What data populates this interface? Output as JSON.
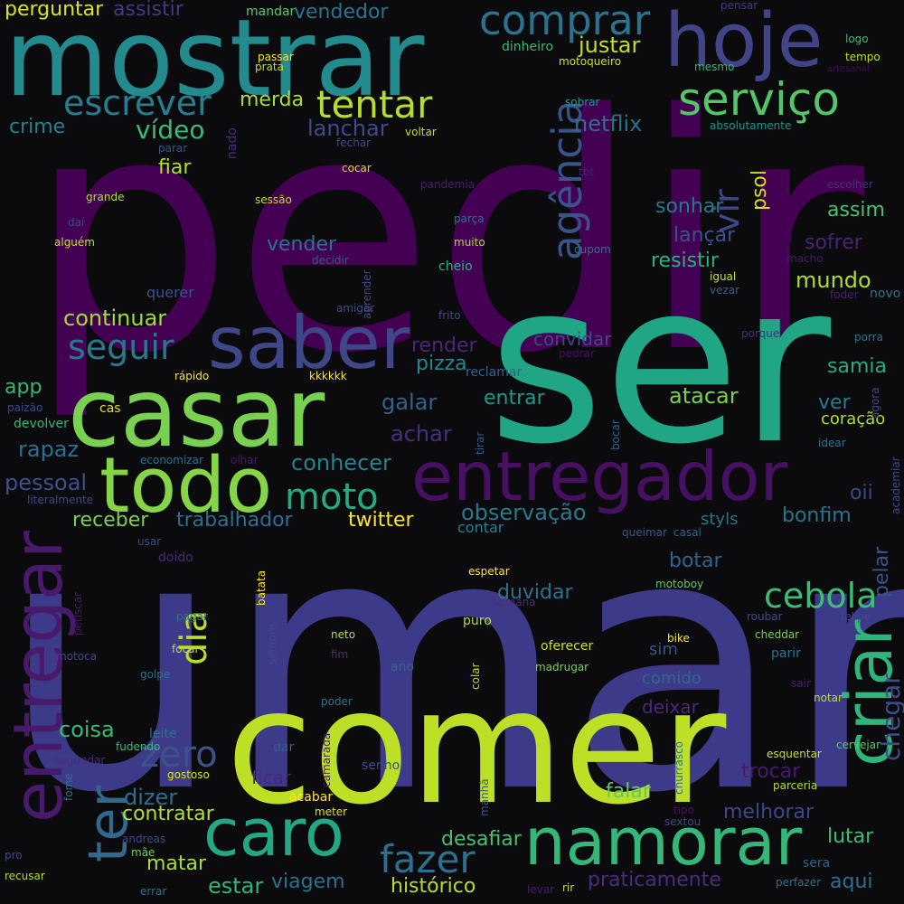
{
  "wordcloud": {
    "words": [
      {
        "text": "pedir",
        "color": "#440154"
      },
      {
        "text": "umar",
        "color": "#3e3a8a"
      },
      {
        "text": "ser",
        "color": "#21a685"
      },
      {
        "text": "comer",
        "color": "#bddf26"
      },
      {
        "text": "mostrar",
        "color": "#238a8d"
      },
      {
        "text": "casar",
        "color": "#7ad151"
      },
      {
        "text": "saber",
        "color": "#3f4788"
      },
      {
        "text": "entregador",
        "color": "#471063"
      },
      {
        "text": "todo",
        "color": "#86d549"
      },
      {
        "text": "hoje",
        "color": "#414487"
      },
      {
        "text": "caro",
        "color": "#22a884"
      },
      {
        "text": "namorar",
        "color": "#35b779"
      },
      {
        "text": "entregar",
        "color": "#481a6c"
      },
      {
        "text": "criar",
        "color": "#2fb47c"
      },
      {
        "text": "serviço",
        "color": "#54c568"
      },
      {
        "text": "comprar",
        "color": "#2c728e"
      },
      {
        "text": "agência",
        "color": "#3b528b"
      },
      {
        "text": "ter",
        "color": "#31688e"
      },
      {
        "text": "tentar",
        "color": "#b5de2b"
      },
      {
        "text": "escrever",
        "color": "#287d8e"
      },
      {
        "text": "seguir",
        "color": "#2a788e"
      },
      {
        "text": "moto",
        "color": "#25ab82"
      },
      {
        "text": "zero",
        "color": "#3b528b"
      },
      {
        "text": "fazer",
        "color": "#2d708e"
      },
      {
        "text": "cebola",
        "color": "#3dbc74"
      },
      {
        "text": "dia",
        "color": "#b8de29"
      },
      {
        "text": "chegar",
        "color": "#3e4c8a"
      },
      {
        "text": "vir",
        "color": "#3f4788"
      },
      {
        "text": "perguntar",
        "color": "#dde318"
      },
      {
        "text": "assistir",
        "color": "#443983"
      },
      {
        "text": "vendedor",
        "color": "#2c728e"
      },
      {
        "text": "vídeo",
        "color": "#3aba76"
      },
      {
        "text": "merda",
        "color": "#addc30"
      },
      {
        "text": "lanchar",
        "color": "#3e4a89"
      },
      {
        "text": "netflix",
        "color": "#2d708e"
      },
      {
        "text": "justar",
        "color": "#c2df23"
      },
      {
        "text": "psol",
        "color": "#d0e11c"
      },
      {
        "text": "crime",
        "color": "#27808e"
      },
      {
        "text": "fiar",
        "color": "#b5de2b"
      },
      {
        "text": "nado",
        "color": "#472d7b"
      },
      {
        "text": "sonhar",
        "color": "#2a788e"
      },
      {
        "text": "assim",
        "color": "#4ac16d"
      },
      {
        "text": "lançar",
        "color": "#3b528b"
      },
      {
        "text": "sofrer",
        "color": "#482475"
      },
      {
        "text": "resistir",
        "color": "#2db27d"
      },
      {
        "text": "vender",
        "color": "#2c728e"
      },
      {
        "text": "mundo",
        "color": "#addc30"
      },
      {
        "text": "continuar",
        "color": "#a2da37"
      },
      {
        "text": "render",
        "color": "#482878"
      },
      {
        "text": "convidar",
        "color": "#3e4989"
      },
      {
        "text": "pizza",
        "color": "#24868e"
      },
      {
        "text": "samia",
        "color": "#25ab82"
      },
      {
        "text": "app",
        "color": "#35b779"
      },
      {
        "text": "galar",
        "color": "#33638d"
      },
      {
        "text": "entrar",
        "color": "#1f988b"
      },
      {
        "text": "atacar",
        "color": "#7ad151"
      },
      {
        "text": "ver",
        "color": "#297b8e"
      },
      {
        "text": "achar",
        "color": "#462f7c"
      },
      {
        "text": "coração",
        "color": "#b2dd2d"
      },
      {
        "text": "rapaz",
        "color": "#2e6f8e"
      },
      {
        "text": "conhecer",
        "color": "#26828e"
      },
      {
        "text": "pessoal",
        "color": "#3b528b"
      },
      {
        "text": "oii",
        "color": "#3f4788"
      },
      {
        "text": "observação",
        "color": "#2a788e"
      },
      {
        "text": "receber",
        "color": "#7ad151"
      },
      {
        "text": "trabalhador",
        "color": "#2d708e"
      },
      {
        "text": "twitter",
        "color": "#fde725"
      },
      {
        "text": "bonfim",
        "color": "#2c728e"
      },
      {
        "text": "styls",
        "color": "#2c728e"
      },
      {
        "text": "pelar",
        "color": "#3b528b"
      },
      {
        "text": "botar",
        "color": "#33638d"
      },
      {
        "text": "duvidar",
        "color": "#2c728e"
      },
      {
        "text": "coisa",
        "color": "#3aba76"
      },
      {
        "text": "trocar",
        "color": "#481a6c"
      },
      {
        "text": "dizer",
        "color": "#2e6e8e"
      },
      {
        "text": "contratar",
        "color": "#b0dd2f"
      },
      {
        "text": "falar",
        "color": "#5ec962"
      },
      {
        "text": "melhorar",
        "color": "#3f4788"
      },
      {
        "text": "desafiar",
        "color": "#46c06f"
      },
      {
        "text": "matar",
        "color": "#a8db34"
      },
      {
        "text": "viagem",
        "color": "#2c728e"
      },
      {
        "text": "estar",
        "color": "#2fb47c"
      },
      {
        "text": "histórico",
        "color": "#b5de2b"
      },
      {
        "text": "praticamente",
        "color": "#472d7b"
      },
      {
        "text": "aqui",
        "color": "#2c728e"
      },
      {
        "text": "lutar",
        "color": "#3aba76"
      },
      {
        "text": "ficar",
        "color": "#482878"
      },
      {
        "text": "sim",
        "color": "#3b528b"
      },
      {
        "text": "comido",
        "color": "#31688e"
      },
      {
        "text": "deixar",
        "color": "#472a7a"
      },
      {
        "text": "contar",
        "color": "#26828e"
      },
      {
        "text": "mandar",
        "color": "#5ec962"
      },
      {
        "text": "dinheiro",
        "color": "#38b977"
      },
      {
        "text": "motoqueiro",
        "color": "#c8e020"
      },
      {
        "text": "mesmo",
        "color": "#3aba76"
      },
      {
        "text": "logo",
        "color": "#35b779"
      },
      {
        "text": "tempo",
        "color": "#c0df25"
      },
      {
        "text": "artesanal",
        "color": "#46085c"
      },
      {
        "text": "pensar",
        "color": "#453882"
      },
      {
        "text": "passar",
        "color": "#fde725"
      },
      {
        "text": "prata",
        "color": "#bddf26"
      },
      {
        "text": "sobrar",
        "color": "#1f9a8a"
      },
      {
        "text": "absolutamente",
        "color": "#20928c"
      },
      {
        "text": "voltar",
        "color": "#c2df23"
      },
      {
        "text": "fechar",
        "color": "#3e4a89"
      },
      {
        "text": "parar",
        "color": "#38588c"
      },
      {
        "text": "cocar",
        "color": "#c8e020"
      },
      {
        "text": "tbt",
        "color": "#482475"
      },
      {
        "text": "grande",
        "color": "#b5de2b"
      },
      {
        "text": "sessão",
        "color": "#c2df23"
      },
      {
        "text": "pandemia",
        "color": "#481f70"
      },
      {
        "text": "escolher",
        "color": "#472d7b"
      },
      {
        "text": "daí",
        "color": "#3e4989"
      },
      {
        "text": "parça",
        "color": "#2c728e"
      },
      {
        "text": "alguém",
        "color": "#c2df23"
      },
      {
        "text": "muito",
        "color": "#a0da39"
      },
      {
        "text": "cupom",
        "color": "#2c728e"
      },
      {
        "text": "decidir",
        "color": "#38588c"
      },
      {
        "text": "aprender",
        "color": "#3e4989"
      },
      {
        "text": "igual",
        "color": "#c8e020"
      },
      {
        "text": "macho",
        "color": "#481a6c"
      },
      {
        "text": "cheio",
        "color": "#2fb47c"
      },
      {
        "text": "querer",
        "color": "#3b528b"
      },
      {
        "text": "vezar",
        "color": "#33638d"
      },
      {
        "text": "foder",
        "color": "#481f70"
      },
      {
        "text": "novo",
        "color": "#2c728e"
      },
      {
        "text": "amigar",
        "color": "#3e4c8a"
      },
      {
        "text": "frito",
        "color": "#3e4c8a"
      },
      {
        "text": "porque",
        "color": "#472d7b"
      },
      {
        "text": "porra",
        "color": "#2c728e"
      },
      {
        "text": "pedrar",
        "color": "#471063"
      },
      {
        "text": "rápido",
        "color": "#fde725"
      },
      {
        "text": "kkkkkk",
        "color": "#fde725"
      },
      {
        "text": "reclamar",
        "color": "#33638d"
      },
      {
        "text": "agora",
        "color": "#3e4a89"
      },
      {
        "text": "paizão",
        "color": "#3e4a89"
      },
      {
        "text": "cas",
        "color": "#dde318"
      },
      {
        "text": "devolver",
        "color": "#35b779"
      },
      {
        "text": "tirar",
        "color": "#38588c"
      },
      {
        "text": "bocar",
        "color": "#33638d"
      },
      {
        "text": "idear",
        "color": "#2c728e"
      },
      {
        "text": "economizar",
        "color": "#2c728e"
      },
      {
        "text": "olhar",
        "color": "#481a6c"
      },
      {
        "text": "academiar",
        "color": "#3e4a89"
      },
      {
        "text": "literalmente",
        "color": "#3e4a89"
      },
      {
        "text": "usar",
        "color": "#3e4989"
      },
      {
        "text": "queimar",
        "color": "#38588c"
      },
      {
        "text": "casal",
        "color": "#33638d"
      },
      {
        "text": "doido",
        "color": "#472a7a"
      },
      {
        "text": "batata",
        "color": "#fde725"
      },
      {
        "text": "espetar",
        "color": "#fde725"
      },
      {
        "text": "semana",
        "color": "#472d7b"
      },
      {
        "text": "motoboy",
        "color": "#5ec962"
      },
      {
        "text": "petiscar",
        "color": "#481a6c"
      },
      {
        "text": "pagar",
        "color": "#2c728e"
      },
      {
        "text": "neto",
        "color": "#b5de2b"
      },
      {
        "text": "puro",
        "color": "#b5de2b"
      },
      {
        "text": "roubar",
        "color": "#3e4a89"
      },
      {
        "text": "felipe",
        "color": "#3e4989"
      },
      {
        "text": "sempre",
        "color": "#3e4a89"
      },
      {
        "text": "bike",
        "color": "#fde725"
      },
      {
        "text": "cheddar",
        "color": "#7ad151"
      },
      {
        "text": "motoca",
        "color": "#3e4a89"
      },
      {
        "text": "focar",
        "color": "#c2df23"
      },
      {
        "text": "fim",
        "color": "#472d7b"
      },
      {
        "text": "oferecer",
        "color": "#c8e020"
      },
      {
        "text": "golpe",
        "color": "#2c728e"
      },
      {
        "text": "ano",
        "color": "#33638d"
      },
      {
        "text": "colar",
        "color": "#c2df23"
      },
      {
        "text": "madrugar",
        "color": "#7ad151"
      },
      {
        "text": "sair",
        "color": "#481f70"
      },
      {
        "text": "poder",
        "color": "#2c728e"
      },
      {
        "text": "notar",
        "color": "#c2df23"
      },
      {
        "text": "leite",
        "color": "#2c728e"
      },
      {
        "text": "fudendo",
        "color": "#3aba76"
      },
      {
        "text": "segundar",
        "color": "#472d7b"
      },
      {
        "text": "dar",
        "color": "#38588c"
      },
      {
        "text": "camarada",
        "color": "#481a6c"
      },
      {
        "text": "churrasco",
        "color": "#2c728e"
      },
      {
        "text": "esquentar",
        "color": "#c8e020"
      },
      {
        "text": "cervejar",
        "color": "#5ec962"
      },
      {
        "text": "senhor",
        "color": "#3e4a89"
      },
      {
        "text": "gostoso",
        "color": "#dde318"
      },
      {
        "text": "parceria",
        "color": "#b5de2b"
      },
      {
        "text": "fome",
        "color": "#2c728e"
      },
      {
        "text": "manhã",
        "color": "#38588c"
      },
      {
        "text": "tipo",
        "color": "#471063"
      },
      {
        "text": "sextou",
        "color": "#3e4989"
      },
      {
        "text": "acabar",
        "color": "#fde725"
      },
      {
        "text": "meter",
        "color": "#dde318"
      },
      {
        "text": "andreas",
        "color": "#3e4a89"
      },
      {
        "text": "mãe",
        "color": "#7ad151"
      },
      {
        "text": "pro",
        "color": "#3e4989"
      },
      {
        "text": "recusar",
        "color": "#b5de2b"
      },
      {
        "text": "errar",
        "color": "#2c728e"
      },
      {
        "text": "levar",
        "color": "#481a6c"
      },
      {
        "text": "rir",
        "color": "#c2df23"
      },
      {
        "text": "perfazer",
        "color": "#2c728e"
      },
      {
        "text": "sera",
        "color": "#33638d"
      },
      {
        "text": "parir",
        "color": "#2c728e"
      }
    ]
  }
}
